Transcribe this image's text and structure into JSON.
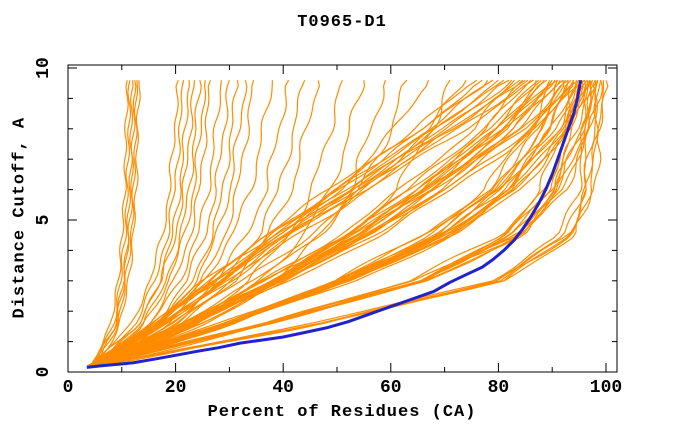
{
  "header": {
    "title": "T0965-D1"
  },
  "chart_data": {
    "type": "line",
    "title": "T0965-D1",
    "xlabel": "Percent of Residues (CA)",
    "ylabel": "Distance Cutoff, A",
    "xlim": [
      0,
      102
    ],
    "ylim": [
      0,
      10.1
    ],
    "grid": false,
    "legend": "none",
    "x_major_ticks": [
      0,
      20,
      40,
      60,
      80,
      100
    ],
    "x_minor_ticks": [
      10,
      30,
      50,
      70,
      90
    ],
    "y_major_ticks": [
      0,
      5,
      10
    ],
    "y_minor_ticks": [
      1,
      2,
      3,
      4,
      6,
      7,
      8,
      9
    ],
    "colors": {
      "model_lines": "#ff8c00",
      "best_model_line": "#2222cc",
      "axis": "#000000"
    },
    "description": "Percent of CA residues under each distance cutoff; one orange curve per predicted model, blue curve = best model",
    "cutoff_range": [
      0.2,
      9.6
    ],
    "anchor_cutoffs": [
      0.2,
      1.5,
      3,
      4.5,
      6,
      8,
      9.6
    ],
    "shapes": {
      "A": [
        0,
        0.42,
        0.8,
        0.94,
        0.975,
        0.99,
        1
      ],
      "B": [
        0,
        0.33,
        0.66,
        0.85,
        0.93,
        0.98,
        1
      ],
      "C": [
        0,
        0.26,
        0.52,
        0.72,
        0.85,
        0.95,
        1
      ],
      "D": [
        0,
        0.2,
        0.4,
        0.58,
        0.73,
        0.9,
        1
      ],
      "E": [
        0,
        0.15,
        0.3,
        0.45,
        0.62,
        0.84,
        1
      ],
      "V": [
        0,
        0.55,
        0.75,
        0.87,
        0.93,
        0.97,
        1
      ],
      "W": [
        0,
        0.45,
        0.68,
        0.82,
        0.9,
        0.96,
        1
      ],
      "S": [
        0,
        0.38,
        0.62,
        0.78,
        0.88,
        0.95,
        1
      ]
    },
    "model_curves": [
      [
        4.0,
        100,
        "A"
      ],
      [
        4.6,
        99.5,
        "A"
      ],
      [
        5.2,
        99,
        "A"
      ],
      [
        3.6,
        99,
        "B"
      ],
      [
        5.8,
        98.5,
        "A"
      ],
      [
        4.3,
        98.5,
        "B"
      ],
      [
        6.2,
        98,
        "A"
      ],
      [
        3.9,
        98,
        "B"
      ],
      [
        5.0,
        98,
        "C"
      ],
      [
        4.8,
        97.5,
        "B"
      ],
      [
        4.0,
        97.5,
        "C"
      ],
      [
        4.6,
        97,
        "A"
      ],
      [
        5.2,
        97,
        "B"
      ],
      [
        3.6,
        97,
        "C"
      ],
      [
        5.8,
        96.5,
        "B"
      ],
      [
        4.3,
        96.5,
        "C"
      ],
      [
        6.2,
        96,
        "B"
      ],
      [
        3.9,
        96,
        "C"
      ],
      [
        5.0,
        96,
        "D"
      ],
      [
        4.8,
        95.5,
        "B"
      ],
      [
        4.0,
        95.5,
        "C"
      ],
      [
        4.6,
        95,
        "B"
      ],
      [
        5.2,
        95,
        "C"
      ],
      [
        3.6,
        95,
        "D"
      ],
      [
        5.8,
        94.5,
        "C"
      ],
      [
        4.3,
        94,
        "B"
      ],
      [
        6.2,
        94,
        "C"
      ],
      [
        3.9,
        94,
        "D"
      ],
      [
        5.0,
        93.5,
        "C"
      ],
      [
        4.8,
        93,
        "C"
      ],
      [
        4.0,
        93,
        "D"
      ],
      [
        4.6,
        92.5,
        "C"
      ],
      [
        5.2,
        92,
        "C"
      ],
      [
        3.6,
        92,
        "D"
      ],
      [
        5.8,
        91.5,
        "D"
      ],
      [
        4.3,
        91,
        "C"
      ],
      [
        6.2,
        91,
        "D"
      ],
      [
        3.9,
        90.5,
        "D"
      ],
      [
        5.0,
        90,
        "C"
      ],
      [
        4.8,
        90,
        "D"
      ],
      [
        4.0,
        89.5,
        "D"
      ],
      [
        4.6,
        89,
        "D"
      ],
      [
        5.2,
        88.5,
        "D"
      ],
      [
        3.6,
        88,
        "D"
      ],
      [
        5.8,
        87.5,
        "D"
      ],
      [
        4.3,
        87,
        "D"
      ],
      [
        6.2,
        86.5,
        "E"
      ],
      [
        3.9,
        86,
        "D"
      ],
      [
        5.0,
        85.5,
        "E"
      ],
      [
        4.8,
        85,
        "D"
      ],
      [
        4.0,
        84.5,
        "E"
      ],
      [
        4.6,
        84,
        "E"
      ],
      [
        5.2,
        83,
        "D"
      ],
      [
        3.6,
        82.5,
        "E"
      ],
      [
        5.8,
        82,
        "E"
      ],
      [
        4.3,
        81,
        "E"
      ],
      [
        6.2,
        80,
        "E"
      ],
      [
        3.9,
        79,
        "E"
      ],
      [
        5.0,
        78,
        "E"
      ],
      [
        4.8,
        77,
        "E"
      ],
      [
        4.0,
        76,
        "E"
      ],
      [
        4.2,
        11,
        "V"
      ],
      [
        4.6,
        11.5,
        "V"
      ],
      [
        5.0,
        12,
        "V"
      ],
      [
        4.4,
        12.4,
        "V"
      ],
      [
        4.8,
        12.8,
        "V"
      ],
      [
        5.3,
        13.2,
        "V"
      ],
      [
        4.2,
        20.5,
        "W"
      ],
      [
        4.8,
        21.5,
        "W"
      ],
      [
        5.4,
        22.5,
        "W"
      ],
      [
        4.0,
        23.5,
        "W"
      ],
      [
        5.0,
        24.5,
        "W"
      ],
      [
        4.4,
        25.5,
        "W"
      ],
      [
        5.6,
        26.5,
        "W"
      ],
      [
        4.2,
        28.5,
        "W"
      ],
      [
        4.8,
        30,
        "W"
      ],
      [
        5.4,
        31.5,
        "W"
      ],
      [
        4.0,
        33,
        "W"
      ],
      [
        5.0,
        34.5,
        "W"
      ],
      [
        4.4,
        38,
        "S"
      ],
      [
        5.6,
        41,
        "S"
      ],
      [
        4.2,
        44,
        "S"
      ],
      [
        4.8,
        46.5,
        "S"
      ],
      [
        5.4,
        51,
        "S"
      ],
      [
        4.0,
        55,
        "S"
      ],
      [
        5.0,
        59,
        "S"
      ],
      [
        4.4,
        63,
        "C"
      ],
      [
        5.6,
        67,
        "D"
      ],
      [
        4.2,
        71,
        "C"
      ],
      [
        4.8,
        74,
        "D"
      ]
    ],
    "best_model_points": [
      [
        3.5,
        0.15
      ],
      [
        6,
        0.2
      ],
      [
        12,
        0.3
      ],
      [
        16,
        0.42
      ],
      [
        20,
        0.55
      ],
      [
        24,
        0.68
      ],
      [
        28,
        0.8
      ],
      [
        32,
        0.95
      ],
      [
        36,
        1.05
      ],
      [
        40,
        1.15
      ],
      [
        44,
        1.3
      ],
      [
        48,
        1.45
      ],
      [
        52,
        1.65
      ],
      [
        56,
        1.9
      ],
      [
        60,
        2.15
      ],
      [
        64,
        2.4
      ],
      [
        68,
        2.65
      ],
      [
        71,
        2.95
      ],
      [
        74,
        3.2
      ],
      [
        77,
        3.45
      ],
      [
        79,
        3.7
      ],
      [
        81,
        4.0
      ],
      [
        83,
        4.35
      ],
      [
        84.5,
        4.7
      ],
      [
        86,
        5.1
      ],
      [
        87.5,
        5.55
      ],
      [
        88.8,
        6.0
      ],
      [
        90,
        6.5
      ],
      [
        91,
        7.0
      ],
      [
        92,
        7.5
      ],
      [
        93,
        8.0
      ],
      [
        94,
        8.5
      ],
      [
        94.7,
        9.0
      ],
      [
        95.3,
        9.6
      ]
    ]
  }
}
